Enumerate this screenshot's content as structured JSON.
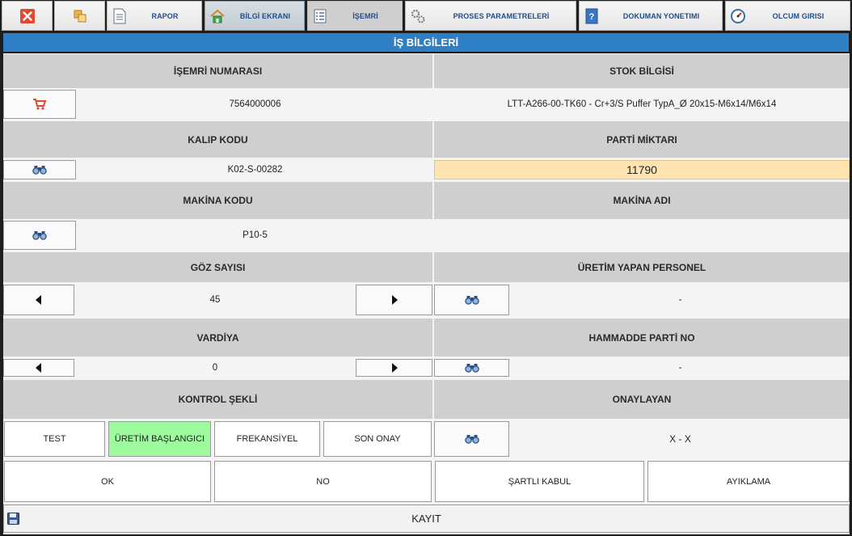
{
  "toolbar": {
    "report": "RAPOR",
    "info_screen": "BİLGİ EKRANI",
    "work_order": "İŞEMRİ",
    "process_params": "PROSES PARAMETRELERİ",
    "doc_management": "DOKUMAN YONETIMI",
    "measurement_entry": "OLCUM GIRISI"
  },
  "title": "İŞ BİLGİLERİ",
  "fields": {
    "work_order_no": {
      "label": "İŞEMRİ NUMARASI",
      "value": "7564000006"
    },
    "stock_info": {
      "label": "STOK BİLGİSİ",
      "value": "LTT-A266-00-TK60 - Cr+3/S Puffer TypA_Ø 20x15-M6x14/M6x14"
    },
    "mold_code": {
      "label": "KALIP KODU",
      "value": "K02-S-00282"
    },
    "batch_qty": {
      "label": "PARTİ MİKTARI",
      "value": "11790"
    },
    "machine_code": {
      "label": "MAKİNA KODU",
      "value": "P10-5"
    },
    "machine_name": {
      "label": "MAKİNA ADI",
      "value": ""
    },
    "cavity_count": {
      "label": "GÖZ SAYISI",
      "value": "45"
    },
    "operator": {
      "label": "ÜRETİM YAPAN PERSONEL",
      "value": "-"
    },
    "shift": {
      "label": "VARDİYA",
      "value": "0"
    },
    "raw_batch_no": {
      "label": "HAMMADDE PARTİ NO",
      "value": "-"
    },
    "control_type": {
      "label": "KONTROL ŞEKLİ"
    },
    "approver": {
      "label": "ONAYLAYAN",
      "value": "X - X"
    }
  },
  "control_options": [
    "TEST",
    "ÜRETİM BAŞLANGICI",
    "FREKANSİYEL",
    "SON ONAY"
  ],
  "selected_control": "ÜRETİM BAŞLANGICI",
  "decision_buttons": [
    "OK",
    "NO",
    "ŞARTLI KABUL",
    "AYIKLAMA"
  ],
  "save_label": "KAYIT",
  "colors": {
    "title_bar": "#2f7fc6",
    "selected_option": "#9dfa9d",
    "quantity_field": "#ffe4b2",
    "toolbar_label": "#1f4d8a"
  }
}
